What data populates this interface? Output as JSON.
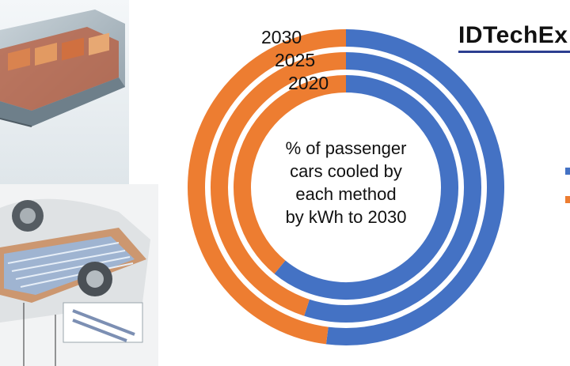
{
  "brand": {
    "logo_text": "IDTechEx"
  },
  "colors": {
    "series_a": "#4472c4",
    "series_b": "#ed7d31"
  },
  "chart_data": {
    "type": "donut",
    "center_text": [
      "% of passenger",
      "cars cooled by",
      "each method",
      "by kWh to 2030"
    ],
    "rings": [
      {
        "year": "2030",
        "values": [
          52,
          48
        ]
      },
      {
        "year": "2025",
        "values": [
          55,
          45
        ]
      },
      {
        "year": "2020",
        "values": [
          61,
          39
        ]
      }
    ],
    "legend_position": "right"
  }
}
